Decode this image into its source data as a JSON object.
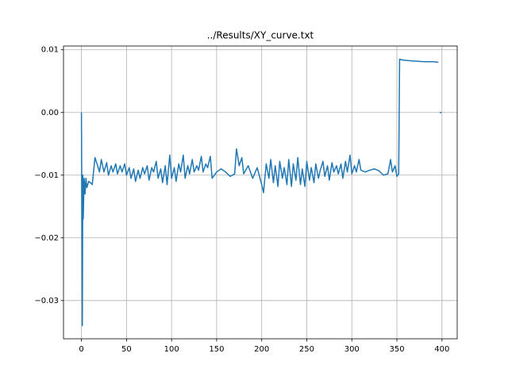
{
  "chart_data": {
    "type": "line",
    "title": "../Results/XY_curve.txt",
    "x": [
      0,
      1,
      1.5,
      2,
      3,
      4,
      5,
      6,
      8,
      10,
      12,
      15,
      18,
      20,
      22,
      25,
      28,
      30,
      33,
      35,
      38,
      40,
      43,
      45,
      48,
      50,
      53,
      55,
      58,
      60,
      63,
      65,
      68,
      70,
      73,
      75,
      78,
      80,
      83,
      85,
      88,
      90,
      93,
      95,
      98,
      100,
      103,
      105,
      108,
      110,
      113,
      115,
      118,
      120,
      123,
      125,
      128,
      130,
      133,
      135,
      138,
      140,
      143,
      145,
      150,
      155,
      160,
      165,
      170,
      172,
      175,
      178,
      180,
      185,
      190,
      195,
      200,
      202,
      205,
      208,
      210,
      213,
      215,
      218,
      220,
      223,
      225,
      228,
      230,
      233,
      235,
      238,
      240,
      243,
      245,
      248,
      250,
      253,
      255,
      258,
      260,
      263,
      265,
      268,
      270,
      273,
      275,
      278,
      280,
      283,
      285,
      288,
      290,
      293,
      295,
      298,
      300,
      303,
      305,
      308,
      310,
      315,
      320,
      325,
      330,
      335,
      340,
      343,
      345,
      348,
      350,
      352,
      353,
      355,
      360,
      370,
      380,
      390,
      396,
      397,
      397.5,
      399.5
    ],
    "series": [
      {
        "name": "XY_curve",
        "color": "#1f77b4",
        "values": [
          0,
          -0.034,
          -0.01,
          -0.017,
          -0.0105,
          -0.013,
          -0.0105,
          -0.012,
          -0.011,
          -0.0112,
          -0.0115,
          -0.0072,
          -0.0085,
          -0.0095,
          -0.0075,
          -0.0095,
          -0.008,
          -0.01,
          -0.0085,
          -0.0095,
          -0.0082,
          -0.0098,
          -0.0085,
          -0.0095,
          -0.0082,
          -0.01,
          -0.0088,
          -0.0105,
          -0.009,
          -0.011,
          -0.0092,
          -0.0105,
          -0.0088,
          -0.0098,
          -0.0085,
          -0.0108,
          -0.0088,
          -0.0095,
          -0.0078,
          -0.0105,
          -0.009,
          -0.0112,
          -0.0085,
          -0.0115,
          -0.0068,
          -0.0105,
          -0.0088,
          -0.011,
          -0.0082,
          -0.0095,
          -0.0068,
          -0.0105,
          -0.0085,
          -0.0098,
          -0.0075,
          -0.0095,
          -0.0085,
          -0.0092,
          -0.007,
          -0.0095,
          -0.0082,
          -0.0088,
          -0.007,
          -0.0105,
          -0.0095,
          -0.009,
          -0.0095,
          -0.0102,
          -0.0098,
          -0.0058,
          -0.0085,
          -0.0072,
          -0.0098,
          -0.0085,
          -0.0105,
          -0.0088,
          -0.0115,
          -0.0128,
          -0.0082,
          -0.0105,
          -0.0075,
          -0.0112,
          -0.0085,
          -0.0118,
          -0.0078,
          -0.0105,
          -0.0088,
          -0.0115,
          -0.0075,
          -0.0118,
          -0.0082,
          -0.0108,
          -0.0072,
          -0.0115,
          -0.009,
          -0.0118,
          -0.0078,
          -0.0108,
          -0.0088,
          -0.0112,
          -0.0082,
          -0.0105,
          -0.0092,
          -0.0078,
          -0.0102,
          -0.0085,
          -0.0108,
          -0.008,
          -0.0095,
          -0.0085,
          -0.0098,
          -0.0082,
          -0.0105,
          -0.0078,
          -0.0095,
          -0.0068,
          -0.0098,
          -0.0085,
          -0.0095,
          -0.0075,
          -0.0092,
          -0.0095,
          -0.0092,
          -0.009,
          -0.0093,
          -0.01,
          -0.0098,
          -0.0075,
          -0.0095,
          -0.0085,
          -0.0102,
          -0.0098,
          0.0085,
          0.0084,
          0.0083,
          0.0082,
          0.0081,
          0.0081,
          0.008,
          null,
          0,
          0
        ]
      }
    ],
    "xlim": [
      -19.9,
      416.9
    ],
    "ylim": [
      -0.0361,
      0.0106
    ],
    "xticks": [
      0,
      50,
      100,
      150,
      200,
      250,
      300,
      350,
      400
    ],
    "yticks": [
      {
        "value": -0.03,
        "label": "−0.03"
      },
      {
        "value": -0.02,
        "label": "−0.02"
      },
      {
        "value": -0.01,
        "label": "−0.01"
      },
      {
        "value": 0,
        "label": "0.00"
      },
      {
        "value": 0.01,
        "label": "0.01"
      }
    ],
    "grid": true
  }
}
